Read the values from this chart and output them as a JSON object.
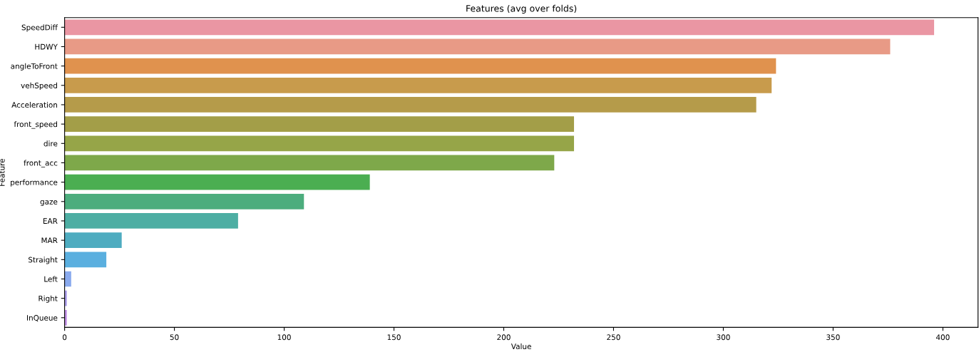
{
  "chart_data": {
    "type": "bar",
    "orientation": "horizontal",
    "title": "Features (avg over folds)",
    "xlabel": "Value",
    "ylabel": "Feature",
    "categories": [
      "SpeedDiff",
      "HDWY",
      "angleToFront",
      "vehSpeed",
      "Acceleration",
      "front_speed",
      "dire",
      "front_acc",
      "performance",
      "gaze",
      "EAR",
      "MAR",
      "Straight",
      "Left",
      "Right",
      "InQueue"
    ],
    "values": [
      396,
      376,
      324,
      322,
      315,
      232,
      232,
      223,
      139,
      109,
      79,
      26,
      19,
      3,
      1,
      1
    ],
    "colors": [
      "#ea96a3",
      "#e89a86",
      "#e0924e",
      "#c89b4c",
      "#b59b4a",
      "#a39e48",
      "#96a548",
      "#7ea84a",
      "#4bae51",
      "#4cad7d",
      "#4daea3",
      "#4eacc0",
      "#5aafdf",
      "#8aaaee",
      "#a99bea",
      "#c08ee6"
    ],
    "xlim": [
      0,
      416
    ],
    "xticks": [
      0,
      50,
      100,
      150,
      200,
      250,
      300,
      350,
      400
    ],
    "grid": false
  }
}
